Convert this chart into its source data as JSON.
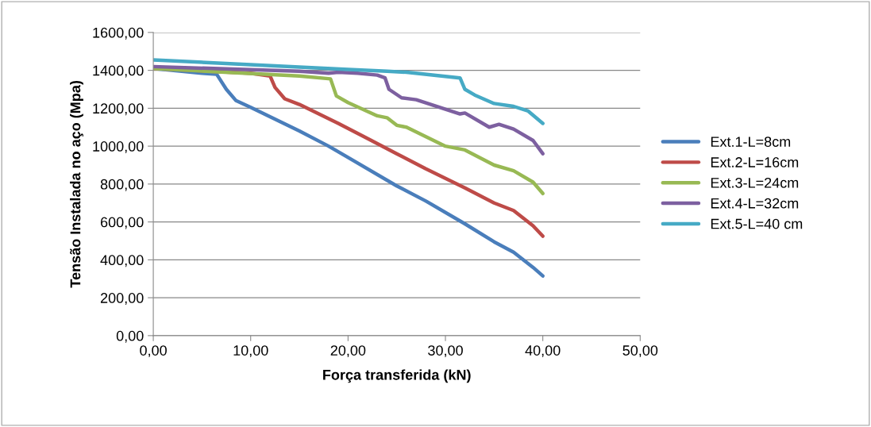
{
  "chart_data": {
    "type": "line",
    "xlabel": "Força transferida (kN)",
    "ylabel": "Tensão Instalada no aço (Mpa)",
    "xlim": [
      0,
      50
    ],
    "ylim": [
      0,
      1600
    ],
    "xticks": [
      {
        "value": 0,
        "label": "0,00"
      },
      {
        "value": 10,
        "label": "10,00"
      },
      {
        "value": 20,
        "label": "20,00"
      },
      {
        "value": 30,
        "label": "30,00"
      },
      {
        "value": 40,
        "label": "40,00"
      },
      {
        "value": 50,
        "label": "50,00"
      }
    ],
    "yticks": [
      {
        "value": 0,
        "label": "0,00"
      },
      {
        "value": 200,
        "label": "200,00"
      },
      {
        "value": 400,
        "label": "400,00"
      },
      {
        "value": 600,
        "label": "600,00"
      },
      {
        "value": 800,
        "label": "800,00"
      },
      {
        "value": 1000,
        "label": "1000,00"
      },
      {
        "value": 1200,
        "label": "1200,00"
      },
      {
        "value": 1400,
        "label": "1400,00"
      },
      {
        "value": 1600,
        "label": "1600,00"
      }
    ],
    "grid": "y",
    "legend": "right",
    "marker": "none",
    "line_style": "solid",
    "series": [
      {
        "name": "Ext.1-L=8cm",
        "color": "#4a7ebb",
        "x": [
          0,
          5,
          6.5,
          7.5,
          8.5,
          10,
          15,
          18,
          20,
          25,
          28,
          32,
          35,
          37,
          39,
          40
        ],
        "values": [
          1410,
          1385,
          1380,
          1300,
          1240,
          1205,
          1080,
          1000,
          940,
          790,
          710,
          590,
          495,
          440,
          360,
          315
        ]
      },
      {
        "name": "Ext.2-L=16cm",
        "color": "#be4b48",
        "x": [
          0,
          10,
          12,
          12.5,
          13.5,
          15,
          19,
          22,
          25,
          28,
          32,
          35,
          37,
          39,
          40
        ],
        "values": [
          1410,
          1385,
          1370,
          1310,
          1250,
          1220,
          1120,
          1040,
          960,
          880,
          780,
          700,
          660,
          580,
          525
        ]
      },
      {
        "name": "Ext.3-L=24cm",
        "color": "#98b954",
        "x": [
          0,
          15,
          18.2,
          18.8,
          20,
          23,
          24,
          25,
          26,
          30,
          32,
          35,
          37,
          39,
          40
        ],
        "values": [
          1410,
          1370,
          1355,
          1265,
          1230,
          1160,
          1150,
          1110,
          1100,
          1000,
          980,
          900,
          870,
          810,
          750
        ]
      },
      {
        "name": "Ext.4-L=32cm",
        "color": "#7d60a0",
        "x": [
          0,
          15,
          18,
          19,
          21,
          23,
          23.8,
          24.2,
          25.5,
          27,
          30,
          31.5,
          32,
          34.5,
          35.5,
          37,
          39,
          40
        ],
        "values": [
          1420,
          1395,
          1385,
          1390,
          1385,
          1375,
          1360,
          1300,
          1255,
          1245,
          1195,
          1170,
          1175,
          1100,
          1115,
          1090,
          1030,
          960
        ]
      },
      {
        "name": "Ext.5-L=40 cm",
        "color": "#46aac5",
        "x": [
          0,
          10,
          20,
          24,
          26,
          31.5,
          32,
          33,
          35,
          37,
          38.5,
          40
        ],
        "values": [
          1455,
          1430,
          1405,
          1395,
          1390,
          1360,
          1300,
          1270,
          1225,
          1210,
          1185,
          1120
        ]
      }
    ]
  }
}
